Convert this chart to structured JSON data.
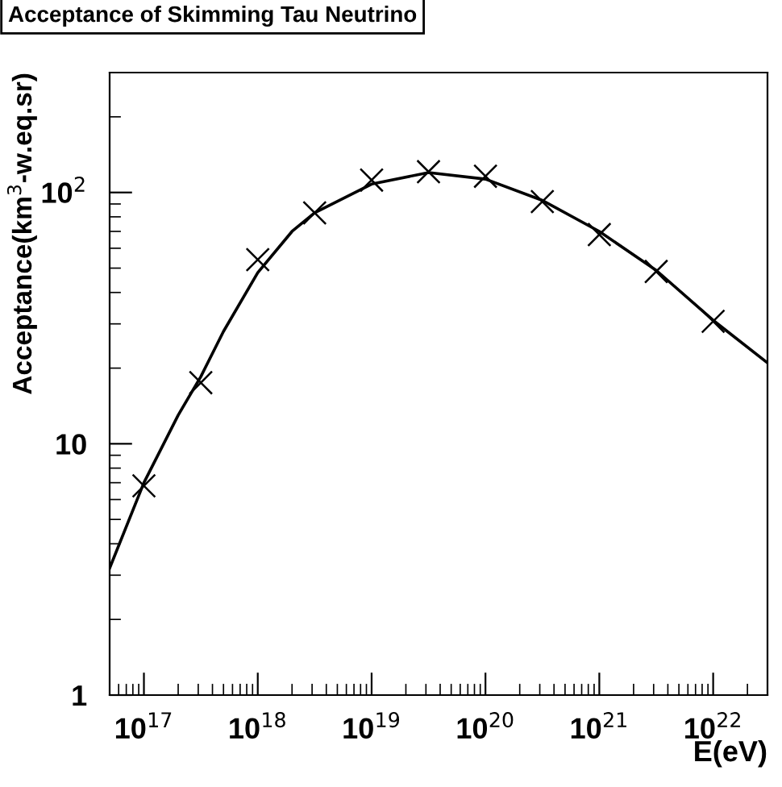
{
  "chart_data": {
    "type": "scatter",
    "title": "Acceptance of Skimming Tau Neutrino",
    "xlabel": "E(eV)",
    "ylabel": "Acceptance(km$^{3}$-w.eq.sr)",
    "log": "xy",
    "xlim": [
      5e+16,
      3e+22
    ],
    "ylim": [
      1,
      300
    ],
    "xticks": [
      {
        "value": 1e+17,
        "label": "10$^{17}$"
      },
      {
        "value": 1e+18,
        "label": "10$^{18}$"
      },
      {
        "value": 1e+19,
        "label": "10$^{19}$"
      },
      {
        "value": 1e+20,
        "label": "10$^{20}$"
      },
      {
        "value": 1e+21,
        "label": "10$^{21}$"
      },
      {
        "value": 1e+22,
        "label": "10$^{22}$"
      }
    ],
    "yticks": [
      1,
      10,
      {
        "value": 100,
        "label": "10$^{2}$"
      }
    ],
    "grid": false,
    "legend": false,
    "series": [
      {
        "marker": "cross",
        "color": "#000000",
        "x": [
          1e+17,
          3.16e+17,
          1e+18,
          3.16e+18,
          1e+19,
          3.16e+19,
          1e+20,
          3.16e+20,
          1e+21,
          3.16e+21,
          1e+22
        ],
        "values": [
          6.8,
          17.5,
          54,
          83,
          112,
          121,
          116,
          92,
          68,
          48.5,
          30.7
        ]
      },
      {
        "type": "line",
        "line_style": "solid",
        "marker": "none",
        "color": "#000000",
        "x": [
          5e+16,
          1e+17,
          2e+17,
          3.16e+17,
          5e+17,
          1e+18,
          2e+18,
          3.16e+18,
          1e+19,
          3.16e+19,
          1e+20,
          3.16e+20,
          1e+21,
          3.16e+21,
          1e+22,
          3e+22
        ],
        "values": [
          3.2,
          7.0,
          13,
          18.5,
          28,
          48,
          70,
          83,
          108,
          120,
          113,
          93,
          70,
          49,
          31,
          21
        ]
      }
    ]
  }
}
